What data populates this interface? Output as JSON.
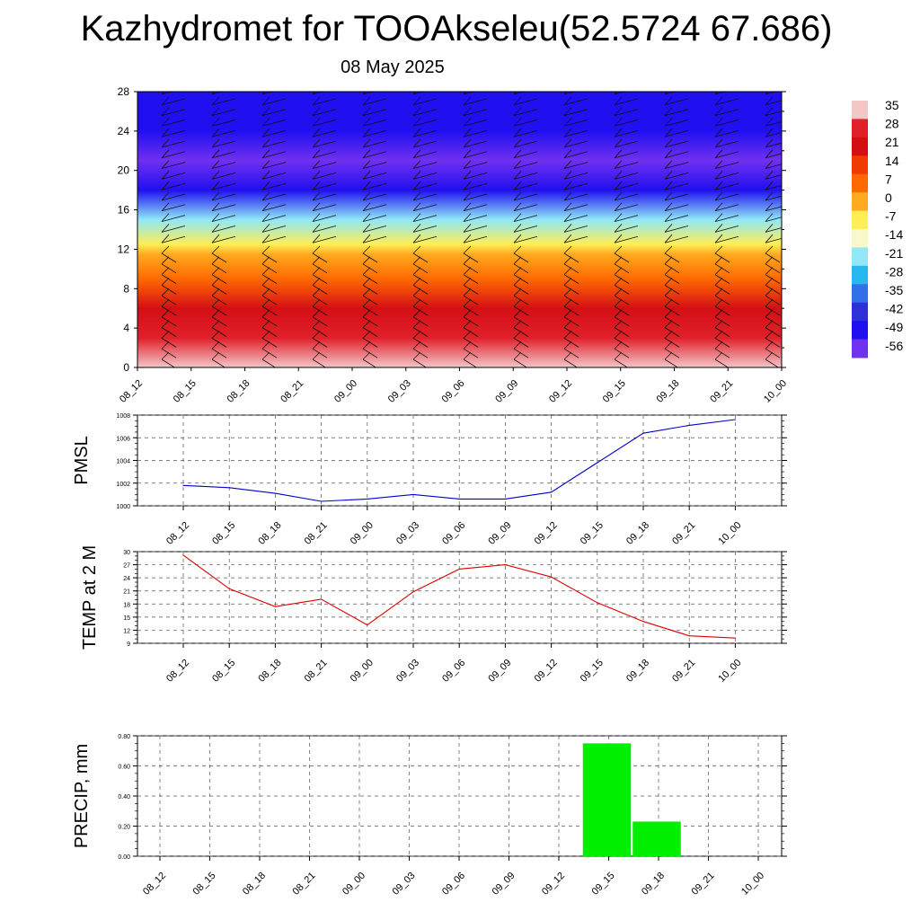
{
  "title": "Kazhydromet for TOOAkseleu(52.5724 67.686)",
  "date": "08 May 2025",
  "colors": {
    "pmsl_line": "#0000cc",
    "temp_line": "#dd0000",
    "precip_bar": "#00ee00"
  },
  "chart_data": [
    {
      "type": "heatmap",
      "name": "vertical-profile",
      "x": [
        "08_12",
        "08_15",
        "08_18",
        "08_21",
        "09_00",
        "09_03",
        "09_06",
        "09_09",
        "09_12",
        "09_15",
        "09_18",
        "09_21",
        "10_00"
      ],
      "ylim": [
        0,
        28
      ],
      "yticks": [
        "0",
        "4",
        "8",
        "12",
        "16",
        "20",
        "24",
        "28"
      ],
      "colorbar": {
        "labels": [
          "35",
          "28",
          "21",
          "14",
          "7",
          "0",
          "-7",
          "-14",
          "-21",
          "-28",
          "-35",
          "-42",
          "-49",
          "-56"
        ],
        "colors": [
          "#f4c6c8",
          "#e0202a",
          "#d40f14",
          "#f03a00",
          "#ff6a00",
          "#ffaa20",
          "#ffee55",
          "#f8f8c8",
          "#90e8f8",
          "#28b8f0",
          "#3070e8",
          "#3030d8",
          "#2010f0",
          "#7030f0"
        ]
      },
      "profile": [
        {
          "level": 0,
          "value": 30
        },
        {
          "level": 3,
          "value": 24
        },
        {
          "level": 6,
          "value": 14
        },
        {
          "level": 9,
          "value": 5
        },
        {
          "level": 11.5,
          "value": -3
        },
        {
          "level": 12.5,
          "value": -12
        },
        {
          "level": 15,
          "value": -28
        },
        {
          "level": 18,
          "value": -52
        },
        {
          "level": 21,
          "value": -60
        },
        {
          "level": 24,
          "value": -55
        },
        {
          "level": 28,
          "value": -50
        }
      ]
    },
    {
      "type": "line",
      "name": "pmsl",
      "ylabel": "PMSL",
      "x": [
        "08_12",
        "08_15",
        "08_18",
        "08_21",
        "09_00",
        "09_03",
        "09_06",
        "09_09",
        "09_12",
        "09_15",
        "09_18",
        "09_21",
        "10_00"
      ],
      "values": [
        1001.8,
        1001.6,
        1001.1,
        1000.4,
        1000.6,
        1001.0,
        1000.6,
        1000.6,
        1001.2,
        1003.8,
        1006.4,
        1007.1,
        1007.6
      ],
      "ylim": [
        1000,
        1008
      ],
      "yticks": [
        "1000",
        "1002",
        "1004",
        "1006",
        "1008"
      ]
    },
    {
      "type": "line",
      "name": "temperature",
      "ylabel": "TEMP at 2 M",
      "x": [
        "08_12",
        "08_15",
        "08_18",
        "08_21",
        "09_00",
        "09_03",
        "09_06",
        "09_09",
        "09_12",
        "09_15",
        "09_18",
        "09_21",
        "10_00"
      ],
      "values": [
        29.2,
        21.5,
        17.4,
        19.1,
        13.2,
        20.8,
        26.0,
        27.0,
        24.2,
        18.3,
        14.0,
        10.7,
        10.2
      ],
      "ylim": [
        9,
        30
      ],
      "yticks": [
        "9",
        "12",
        "15",
        "18",
        "21",
        "24",
        "27",
        "30"
      ]
    },
    {
      "type": "bar",
      "name": "precipitation",
      "ylabel": "PRECIP, mm",
      "x": [
        "08_12",
        "08_15",
        "08_18",
        "08_21",
        "09_00",
        "09_03",
        "09_06",
        "09_09",
        "09_12",
        "09_15",
        "09_18",
        "09_21",
        "10_00"
      ],
      "values": [
        0,
        0,
        0,
        0,
        0,
        0,
        0,
        0,
        0,
        0.75,
        0.23,
        0,
        0
      ],
      "ylim": [
        0,
        0.8
      ],
      "yticks": [
        "0.00",
        "0.20",
        "0.40",
        "0.60",
        "0.80"
      ]
    }
  ]
}
